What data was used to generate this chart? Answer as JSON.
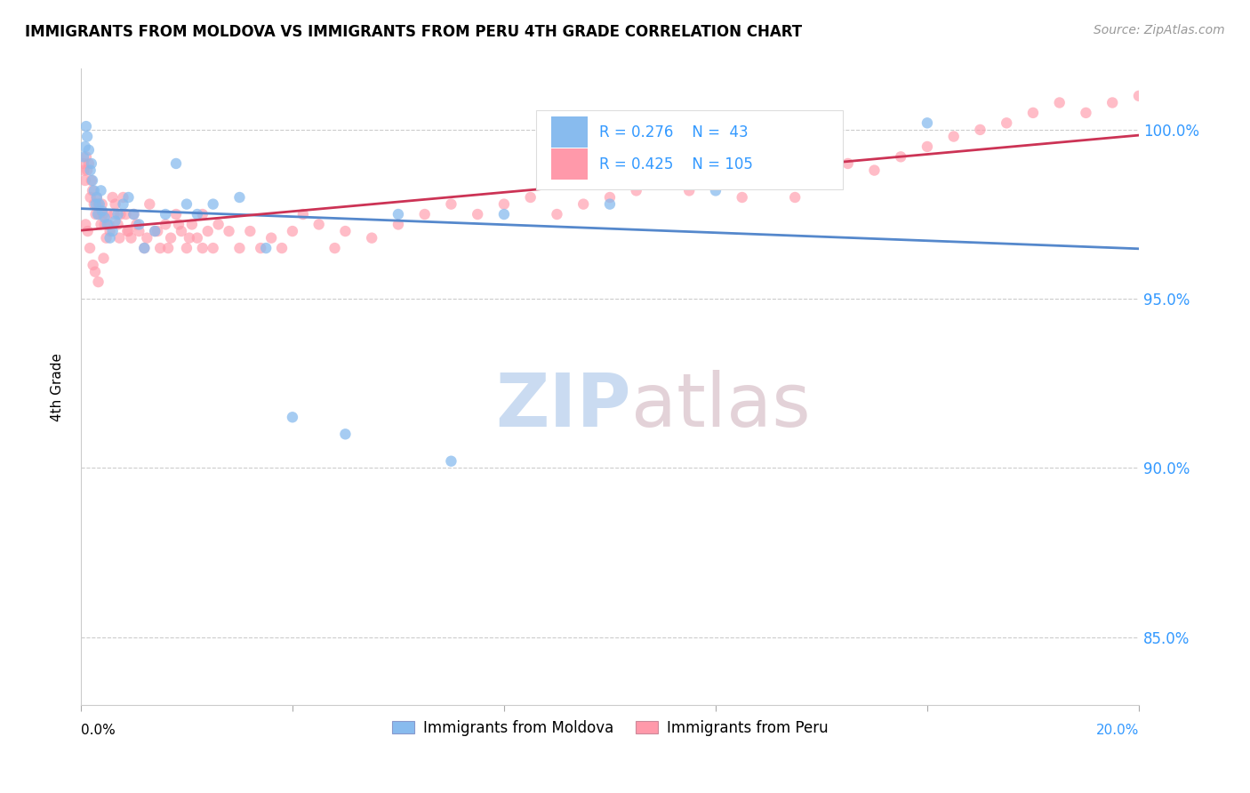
{
  "title": "IMMIGRANTS FROM MOLDOVA VS IMMIGRANTS FROM PERU 4TH GRADE CORRELATION CHART",
  "source": "Source: ZipAtlas.com",
  "ylabel": "4th Grade",
  "xlim": [
    0.0,
    20.0
  ],
  "ylim": [
    83.0,
    101.8
  ],
  "yticks": [
    85.0,
    90.0,
    95.0,
    100.0
  ],
  "ytick_labels": [
    "85.0%",
    "90.0%",
    "95.0%",
    "100.0%"
  ],
  "moldova_color": "#88BBEE",
  "peru_color": "#FF99AA",
  "moldova_line_color": "#5588CC",
  "peru_line_color": "#CC3355",
  "moldova_R": 0.276,
  "moldova_N": 43,
  "peru_R": 0.425,
  "peru_N": 105,
  "legend_moldova": "Immigrants from Moldova",
  "legend_peru": "Immigrants from Peru",
  "watermark_zip": "ZIP",
  "watermark_atlas": "atlas",
  "moldova_x": [
    0.05,
    0.08,
    0.1,
    0.12,
    0.15,
    0.18,
    0.2,
    0.22,
    0.25,
    0.28,
    0.3,
    0.32,
    0.35,
    0.38,
    0.4,
    0.45,
    0.5,
    0.55,
    0.6,
    0.65,
    0.7,
    0.8,
    0.9,
    1.0,
    1.1,
    1.2,
    1.4,
    1.6,
    1.8,
    2.0,
    2.2,
    2.5,
    3.0,
    3.5,
    4.0,
    5.0,
    6.0,
    7.0,
    8.0,
    10.0,
    12.0,
    14.0,
    16.0
  ],
  "moldova_y": [
    99.2,
    99.5,
    100.1,
    99.8,
    99.4,
    98.8,
    99.0,
    98.5,
    98.2,
    97.8,
    98.0,
    97.5,
    97.8,
    98.2,
    97.6,
    97.4,
    97.2,
    96.8,
    97.0,
    97.3,
    97.5,
    97.8,
    98.0,
    97.5,
    97.2,
    96.5,
    97.0,
    97.5,
    99.0,
    97.8,
    97.5,
    97.8,
    98.0,
    96.5,
    91.5,
    91.0,
    97.5,
    90.2,
    97.5,
    97.8,
    98.2,
    98.5,
    100.2
  ],
  "peru_x": [
    0.05,
    0.08,
    0.1,
    0.12,
    0.15,
    0.18,
    0.2,
    0.22,
    0.25,
    0.28,
    0.3,
    0.32,
    0.35,
    0.38,
    0.4,
    0.42,
    0.45,
    0.48,
    0.5,
    0.55,
    0.6,
    0.65,
    0.7,
    0.75,
    0.8,
    0.85,
    0.9,
    0.95,
    1.0,
    1.1,
    1.2,
    1.3,
    1.4,
    1.5,
    1.6,
    1.7,
    1.8,
    1.9,
    2.0,
    2.1,
    2.2,
    2.3,
    2.4,
    2.5,
    2.6,
    2.8,
    3.0,
    3.2,
    3.4,
    3.6,
    3.8,
    4.0,
    4.2,
    4.5,
    4.8,
    5.0,
    5.5,
    6.0,
    6.5,
    7.0,
    7.5,
    8.0,
    8.5,
    9.0,
    9.5,
    10.0,
    10.5,
    11.0,
    11.5,
    12.0,
    12.5,
    13.0,
    13.5,
    14.0,
    14.5,
    15.0,
    15.5,
    16.0,
    16.5,
    17.0,
    17.5,
    18.0,
    18.5,
    19.0,
    19.5,
    20.0,
    0.06,
    0.09,
    0.13,
    0.17,
    0.23,
    0.27,
    0.33,
    0.43,
    0.53,
    0.63,
    0.73,
    0.88,
    1.05,
    1.25,
    1.45,
    1.65,
    1.85,
    2.05,
    2.3
  ],
  "peru_y": [
    99.0,
    98.5,
    99.2,
    98.8,
    99.0,
    98.0,
    98.5,
    98.2,
    97.8,
    97.5,
    98.0,
    97.8,
    97.5,
    97.2,
    97.8,
    97.5,
    97.2,
    96.8,
    97.5,
    97.0,
    98.0,
    97.8,
    97.2,
    97.5,
    98.0,
    97.5,
    97.0,
    96.8,
    97.5,
    97.0,
    96.5,
    97.8,
    97.0,
    96.5,
    97.2,
    96.8,
    97.5,
    97.0,
    96.5,
    97.2,
    96.8,
    97.5,
    97.0,
    96.5,
    97.2,
    97.0,
    96.5,
    97.0,
    96.5,
    96.8,
    96.5,
    97.0,
    97.5,
    97.2,
    96.5,
    97.0,
    96.8,
    97.2,
    97.5,
    97.8,
    97.5,
    97.8,
    98.0,
    97.5,
    97.8,
    98.0,
    98.2,
    98.5,
    98.2,
    98.5,
    98.0,
    98.5,
    98.0,
    98.5,
    99.0,
    98.8,
    99.2,
    99.5,
    99.8,
    100.0,
    100.2,
    100.5,
    100.8,
    100.5,
    100.8,
    101.0,
    98.8,
    97.2,
    97.0,
    96.5,
    96.0,
    95.8,
    95.5,
    96.2,
    97.2,
    97.5,
    96.8,
    97.0,
    97.2,
    96.8,
    97.0,
    96.5,
    97.2,
    96.8,
    96.5
  ]
}
